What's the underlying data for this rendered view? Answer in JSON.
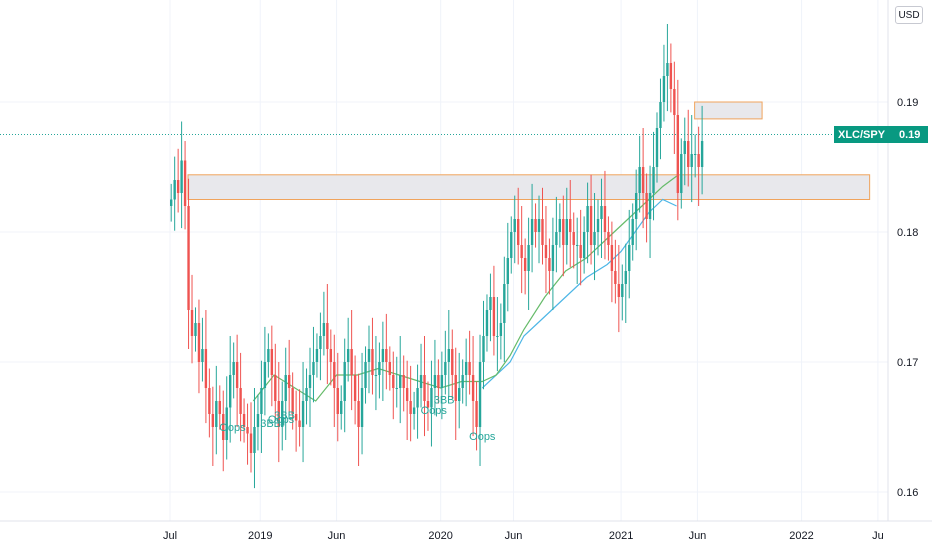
{
  "currency": "USD",
  "symbol_label": "XLC/SPY",
  "last_price_label": "0.19",
  "last_price": 0.1875,
  "colors": {
    "up": "#26a69a",
    "down": "#ef5350",
    "ma_fast": "#66bb6a",
    "ma_slow": "#4db6e6",
    "zone_fill": "#e8e8ec",
    "zone_border": "#f0a35c",
    "last_line": "#26a69a"
  },
  "chart_data": {
    "type": "candlestick",
    "ylim": [
      0.158,
      0.198
    ],
    "y_ticks": [
      {
        "value": 0.16,
        "label": "0.16"
      },
      {
        "value": 0.17,
        "label": "0.17"
      },
      {
        "value": 0.18,
        "label": "0.18"
      },
      {
        "value": 0.19,
        "label": "0.19"
      }
    ],
    "x_ticks": [
      {
        "week": 0,
        "label": "Jul"
      },
      {
        "week": 26,
        "label": "2019"
      },
      {
        "week": 48,
        "label": "Jun"
      },
      {
        "week": 78,
        "label": "2020"
      },
      {
        "week": 99,
        "label": "Jun"
      },
      {
        "week": 130,
        "label": "2021"
      },
      {
        "week": 152,
        "label": "Jun"
      },
      {
        "week": 182,
        "label": "2022"
      },
      {
        "week": 204,
        "label": "Ju"
      }
    ],
    "closes": [
      0.1825,
      0.184,
      0.183,
      0.1855,
      0.182,
      0.174,
      0.172,
      0.173,
      0.17,
      0.171,
      0.168,
      0.166,
      0.165,
      0.167,
      0.166,
      0.164,
      0.1665,
      0.169,
      0.17,
      0.168,
      0.166,
      0.165,
      0.1645,
      0.163,
      0.165,
      0.166,
      0.168,
      0.17,
      0.171,
      0.169,
      0.167,
      0.165,
      0.167,
      0.169,
      0.168,
      0.166,
      0.1655,
      0.165,
      0.167,
      0.168,
      0.169,
      0.17,
      0.171,
      0.172,
      0.173,
      0.171,
      0.17,
      0.168,
      0.166,
      0.167,
      0.17,
      0.171,
      0.169,
      0.167,
      0.165,
      0.168,
      0.17,
      0.171,
      0.169,
      0.169,
      0.17,
      0.171,
      0.17,
      0.169,
      0.168,
      0.168,
      0.169,
      0.168,
      0.167,
      0.166,
      0.1665,
      0.168,
      0.169,
      0.167,
      0.1665,
      0.168,
      0.169,
      0.168,
      0.169,
      0.17,
      0.171,
      0.169,
      0.167,
      0.168,
      0.169,
      0.17,
      0.169,
      0.167,
      0.165,
      0.17,
      0.172,
      0.174,
      0.175,
      0.172,
      0.172,
      0.173,
      0.176,
      0.178,
      0.18,
      0.181,
      0.179,
      0.178,
      0.177,
      0.179,
      0.181,
      0.18,
      0.181,
      0.179,
      0.178,
      0.177,
      0.179,
      0.18,
      0.181,
      0.179,
      0.181,
      0.18,
      0.179,
      0.179,
      0.178,
      0.18,
      0.182,
      0.179,
      0.18,
      0.181,
      0.182,
      0.18,
      0.179,
      0.177,
      0.176,
      0.175,
      0.176,
      0.177,
      0.179,
      0.181,
      0.183,
      0.185,
      0.183,
      0.181,
      0.183,
      0.185,
      0.188,
      0.19,
      0.192,
      0.193,
      0.191,
      0.189,
      0.183,
      0.186,
      0.187,
      0.185,
      0.186,
      0.186,
      0.185,
      0.187
    ],
    "opens": [
      0.182,
      0.1825,
      0.184,
      0.183,
      0.1855,
      0.182,
      0.174,
      0.172,
      0.173,
      0.17,
      0.171,
      0.168,
      0.166,
      0.165,
      0.167,
      0.166,
      0.164,
      0.1665,
      0.169,
      0.17,
      0.168,
      0.166,
      0.165,
      0.1645,
      0.163,
      0.165,
      0.166,
      0.168,
      0.17,
      0.171,
      0.169,
      0.167,
      0.165,
      0.167,
      0.169,
      0.168,
      0.166,
      0.1655,
      0.165,
      0.167,
      0.168,
      0.169,
      0.17,
      0.171,
      0.172,
      0.173,
      0.171,
      0.17,
      0.168,
      0.166,
      0.167,
      0.17,
      0.171,
      0.169,
      0.167,
      0.165,
      0.168,
      0.17,
      0.171,
      0.169,
      0.169,
      0.17,
      0.171,
      0.17,
      0.169,
      0.168,
      0.168,
      0.169,
      0.168,
      0.167,
      0.166,
      0.1665,
      0.168,
      0.169,
      0.167,
      0.1665,
      0.168,
      0.169,
      0.168,
      0.169,
      0.17,
      0.171,
      0.169,
      0.167,
      0.168,
      0.169,
      0.17,
      0.169,
      0.167,
      0.165,
      0.17,
      0.172,
      0.174,
      0.175,
      0.172,
      0.172,
      0.173,
      0.176,
      0.178,
      0.18,
      0.181,
      0.179,
      0.178,
      0.177,
      0.179,
      0.181,
      0.18,
      0.181,
      0.179,
      0.178,
      0.177,
      0.179,
      0.18,
      0.181,
      0.179,
      0.181,
      0.18,
      0.179,
      0.179,
      0.178,
      0.18,
      0.182,
      0.179,
      0.18,
      0.181,
      0.182,
      0.18,
      0.179,
      0.177,
      0.176,
      0.175,
      0.176,
      0.177,
      0.179,
      0.181,
      0.183,
      0.185,
      0.183,
      0.181,
      0.183,
      0.185,
      0.188,
      0.19,
      0.192,
      0.193,
      0.191,
      0.189,
      0.183,
      0.186,
      0.187,
      0.185,
      0.186,
      0.186,
      0.185
    ],
    "ma_fast": [
      [
        24,
        0.167
      ],
      [
        30,
        0.169
      ],
      [
        36,
        0.168
      ],
      [
        42,
        0.167
      ],
      [
        48,
        0.169
      ],
      [
        54,
        0.169
      ],
      [
        60,
        0.1695
      ],
      [
        66,
        0.169
      ],
      [
        72,
        0.1685
      ],
      [
        78,
        0.168
      ],
      [
        84,
        0.1685
      ],
      [
        90,
        0.1685
      ],
      [
        94,
        0.169
      ],
      [
        98,
        0.1705
      ],
      [
        102,
        0.1725
      ],
      [
        108,
        0.175
      ],
      [
        114,
        0.177
      ],
      [
        120,
        0.178
      ],
      [
        126,
        0.1795
      ],
      [
        130,
        0.1805
      ],
      [
        134,
        0.1815
      ],
      [
        138,
        0.1825
      ],
      [
        142,
        0.1835
      ],
      [
        146,
        0.1843
      ]
    ],
    "ma_slow": [
      [
        90,
        0.168
      ],
      [
        94,
        0.169
      ],
      [
        98,
        0.17
      ],
      [
        102,
        0.172
      ],
      [
        108,
        0.1735
      ],
      [
        114,
        0.175
      ],
      [
        120,
        0.1765
      ],
      [
        126,
        0.1775
      ],
      [
        130,
        0.1785
      ],
      [
        134,
        0.18
      ],
      [
        138,
        0.1815
      ],
      [
        142,
        0.1825
      ],
      [
        146,
        0.182
      ]
    ],
    "zones": [
      {
        "w0": 0,
        "w1": 195,
        "y0": 0.1825,
        "y1": 0.1844
      },
      {
        "w0": 146,
        "w1": 164,
        "y0": 0.1887,
        "y1": 0.19
      }
    ],
    "signals": [
      {
        "week": 18,
        "y": 0.1647,
        "label": "Oops"
      },
      {
        "week": 29,
        "y": 0.165,
        "label": "3BB"
      },
      {
        "week": 32,
        "y": 0.1653,
        "label": "Oops"
      },
      {
        "week": 33,
        "y": 0.1656,
        "label": "3BB"
      },
      {
        "week": 76,
        "y": 0.166,
        "label": "Oops"
      },
      {
        "week": 79,
        "y": 0.1668,
        "label": "3BB"
      },
      {
        "week": 90,
        "y": 0.164,
        "label": "Oops"
      }
    ]
  }
}
